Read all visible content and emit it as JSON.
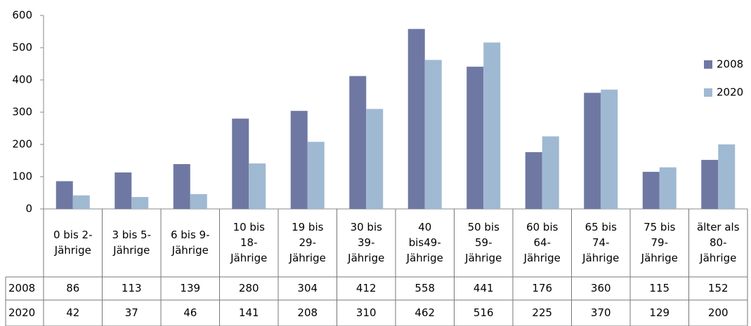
{
  "chart_data": {
    "type": "bar",
    "categories": [
      [
        "0 bis 2-",
        "Jährige"
      ],
      [
        "3 bis 5-",
        "Jährige"
      ],
      [
        "6 bis 9-",
        "Jährige"
      ],
      [
        "10 bis",
        "18-",
        "Jährige"
      ],
      [
        "19 bis",
        "29-",
        "Jährige"
      ],
      [
        "30 bis",
        "39-",
        "Jährige"
      ],
      [
        "40",
        "bis49-",
        "Jährige"
      ],
      [
        "50 bis",
        "59-",
        "Jährige"
      ],
      [
        "60 bis",
        "64-",
        "Jährige"
      ],
      [
        "65 bis",
        "74-",
        "Jährige"
      ],
      [
        "75 bis",
        "79-",
        "Jährige"
      ],
      [
        "älter als",
        "80-",
        "Jährige"
      ]
    ],
    "series": [
      {
        "name": "2008",
        "color": "#6f78a3",
        "values": [
          86,
          113,
          139,
          280,
          304,
          412,
          558,
          441,
          176,
          360,
          115,
          152
        ]
      },
      {
        "name": "2020",
        "color": "#a0b9d2",
        "values": [
          42,
          37,
          46,
          141,
          208,
          310,
          462,
          516,
          225,
          370,
          129,
          200
        ]
      }
    ],
    "ylim": [
      0,
      600
    ],
    "yticks": [
      0,
      100,
      200,
      300,
      400,
      500,
      600
    ],
    "grid": false,
    "legend": "right"
  }
}
